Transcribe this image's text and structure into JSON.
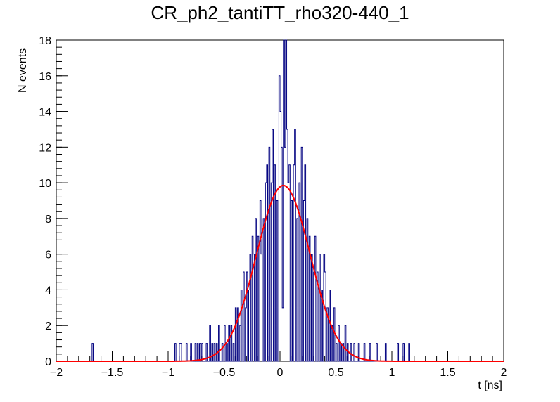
{
  "chart_data": {
    "type": "histogram",
    "title": "CR_ph2_tantiTT_rho320-440_1",
    "xlabel": "t [ns]",
    "ylabel": "N events",
    "xlim": [
      -2,
      2
    ],
    "ylim": [
      0,
      18
    ],
    "x_ticks": [
      "−2",
      "−1.5",
      "−1",
      "−0.5",
      "0",
      "0.5",
      "1",
      "1.5",
      "2"
    ],
    "y_ticks": [
      "0",
      "2",
      "4",
      "6",
      "8",
      "10",
      "12",
      "14",
      "16",
      "18"
    ],
    "grid": false,
    "legend": "none",
    "bin_width": 0.01,
    "histogram_color": "#000080",
    "fit_color": "#ff0000",
    "bins": [
      [
        -1.68,
        1
      ],
      [
        -0.94,
        1
      ],
      [
        -0.9,
        1
      ],
      [
        -0.89,
        1
      ],
      [
        -0.84,
        1
      ],
      [
        -0.8,
        1
      ],
      [
        -0.76,
        1
      ],
      [
        -0.74,
        1
      ],
      [
        -0.72,
        1
      ],
      [
        -0.7,
        1
      ],
      [
        -0.66,
        1
      ],
      [
        -0.63,
        2
      ],
      [
        -0.61,
        1
      ],
      [
        -0.59,
        1
      ],
      [
        -0.57,
        1
      ],
      [
        -0.55,
        2
      ],
      [
        -0.52,
        1
      ],
      [
        -0.5,
        2
      ],
      [
        -0.48,
        1
      ],
      [
        -0.46,
        2
      ],
      [
        -0.44,
        2
      ],
      [
        -0.42,
        1
      ],
      [
        -0.4,
        3
      ],
      [
        -0.38,
        3
      ],
      [
        -0.36,
        2
      ],
      [
        -0.35,
        4
      ],
      [
        -0.33,
        5
      ],
      [
        -0.31,
        3
      ],
      [
        -0.3,
        5
      ],
      [
        -0.28,
        4
      ],
      [
        -0.27,
        6
      ],
      [
        -0.25,
        7
      ],
      [
        -0.24,
        6
      ],
      [
        -0.22,
        8
      ],
      [
        -0.2,
        7
      ],
      [
        -0.18,
        9
      ],
      [
        -0.17,
        6
      ],
      [
        -0.15,
        8
      ],
      [
        -0.13,
        10
      ],
      [
        -0.12,
        11
      ],
      [
        -0.1,
        12
      ],
      [
        -0.08,
        10
      ],
      [
        -0.07,
        13
      ],
      [
        -0.05,
        11
      ],
      [
        -0.03,
        9
      ],
      [
        -0.01,
        16
      ],
      [
        0.0,
        14
      ],
      [
        0.01,
        12
      ],
      [
        0.02,
        3
      ],
      [
        0.03,
        18
      ],
      [
        0.04,
        12
      ],
      [
        0.05,
        18
      ],
      [
        0.06,
        13
      ],
      [
        0.07,
        10
      ],
      [
        0.08,
        11
      ],
      [
        0.1,
        9
      ],
      [
        0.12,
        11
      ],
      [
        0.13,
        13
      ],
      [
        0.15,
        8
      ],
      [
        0.17,
        10
      ],
      [
        0.19,
        12
      ],
      [
        0.21,
        9
      ],
      [
        0.22,
        11
      ],
      [
        0.24,
        8
      ],
      [
        0.26,
        7
      ],
      [
        0.28,
        6
      ],
      [
        0.3,
        5
      ],
      [
        0.31,
        7
      ],
      [
        0.33,
        5
      ],
      [
        0.35,
        6
      ],
      [
        0.37,
        4
      ],
      [
        0.39,
        6
      ],
      [
        0.4,
        5
      ],
      [
        0.42,
        3
      ],
      [
        0.44,
        4
      ],
      [
        0.46,
        2
      ],
      [
        0.48,
        3
      ],
      [
        0.5,
        1
      ],
      [
        0.52,
        2
      ],
      [
        0.54,
        1
      ],
      [
        0.56,
        1
      ],
      [
        0.58,
        2
      ],
      [
        0.6,
        1
      ],
      [
        0.63,
        1
      ],
      [
        0.66,
        1
      ],
      [
        0.7,
        1
      ],
      [
        0.75,
        1
      ],
      [
        0.8,
        1
      ],
      [
        0.86,
        1
      ],
      [
        0.94,
        1
      ],
      [
        1.05,
        1
      ],
      [
        1.1,
        1
      ],
      [
        1.15,
        1
      ]
    ],
    "fit": {
      "function": "gaussian",
      "amplitude": 9.85,
      "mean": 0.03,
      "sigma": 0.24
    }
  }
}
